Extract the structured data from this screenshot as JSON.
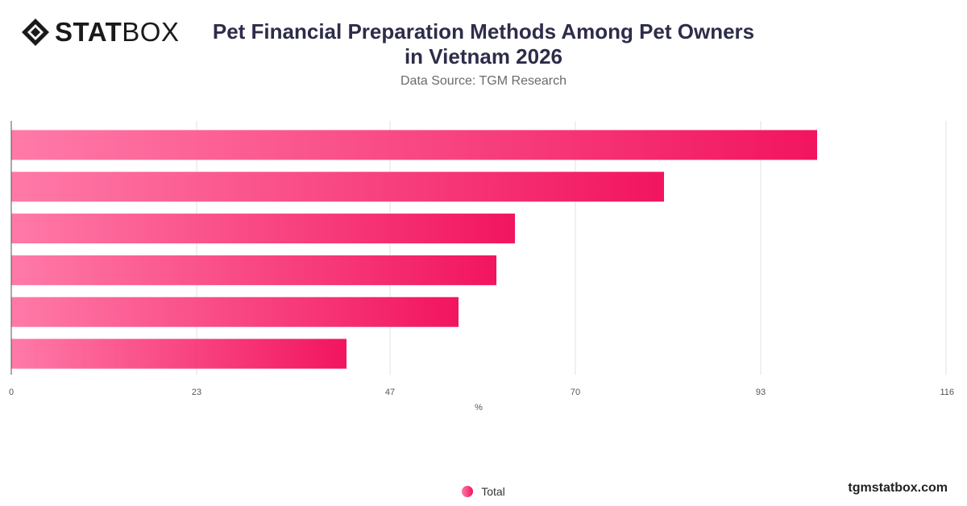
{
  "brand": {
    "logo_bold": "STAT",
    "logo_light": "BOX",
    "footer": "tgmstatbox.com"
  },
  "chart_data": {
    "type": "bar",
    "orientation": "horizontal",
    "title_line1": "Pet Financial Preparation Methods Among Pet Owners",
    "title_line2": "in Vietnam 2026",
    "subtitle": "Data Source: TGM Research",
    "xlabel": "%",
    "xlim": [
      0,
      116
    ],
    "xticks": [
      "0",
      "23",
      "47",
      "70",
      "93",
      "116"
    ],
    "grid": true,
    "legend_position": "bottom-center",
    "series": [
      {
        "name": "Total",
        "values": [
          100,
          81,
          62.5,
          60.2,
          55.5,
          41.6
        ]
      }
    ],
    "colors": {
      "bar_start": "#ff7aa8",
      "bar_end": "#f2155f",
      "grid": "#e2e2e2",
      "axis": "#555555"
    }
  }
}
